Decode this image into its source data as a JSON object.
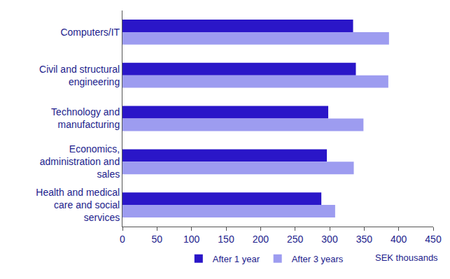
{
  "chart_data": {
    "type": "bar",
    "orientation": "horizontal",
    "categories": [
      "Computers/IT",
      "Civil and structural engineering",
      "Technology and manufacturing",
      "Economics, administration and sales",
      "Health and medical care and social services"
    ],
    "series": [
      {
        "name": "After 1 year",
        "color": "#2a16c8",
        "values": [
          334,
          338,
          298,
          296,
          288
        ]
      },
      {
        "name": "After 3 years",
        "color": "#9d9cf0",
        "values": [
          386,
          385,
          349,
          335,
          308
        ]
      }
    ],
    "x_label": "SEK thousands",
    "xlim": [
      0,
      450
    ],
    "xticks": [
      0,
      50,
      100,
      150,
      200,
      250,
      300,
      350,
      400,
      450
    ],
    "grid": false,
    "legend": "bottom"
  }
}
